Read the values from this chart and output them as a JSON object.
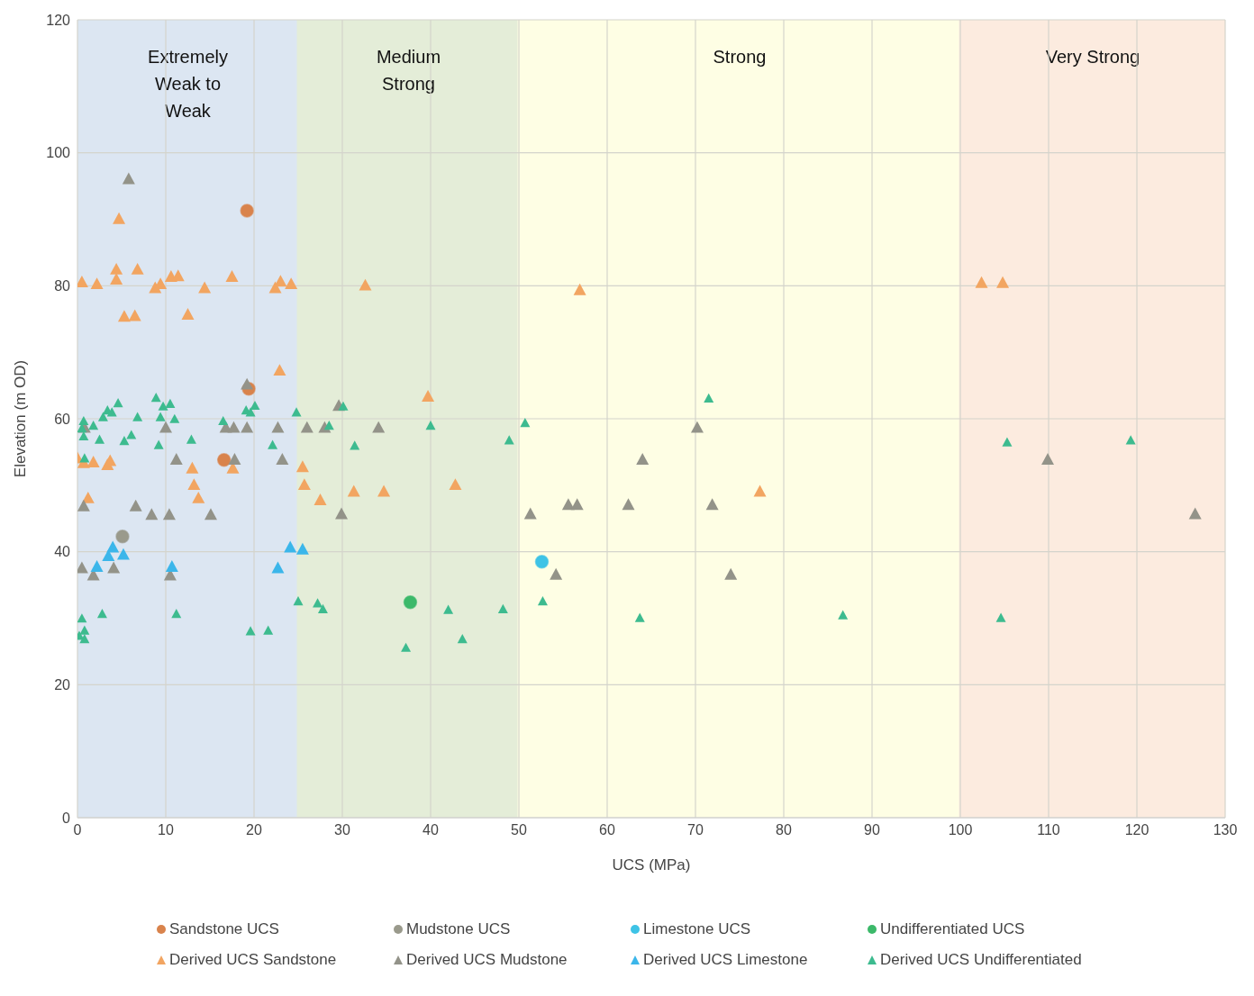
{
  "chart_data": {
    "type": "scatter",
    "xlabel": "UCS (MPa)",
    "ylabel": "Elevation (m OD)",
    "xlim": [
      0,
      130
    ],
    "xticks": [
      0,
      10,
      20,
      30,
      40,
      50,
      60,
      70,
      80,
      90,
      100,
      110,
      120,
      130
    ],
    "ylim": [
      0,
      120
    ],
    "yticks": [
      0,
      20,
      40,
      60,
      80,
      100,
      120
    ],
    "grid": true,
    "legend": "bottom",
    "bands": [
      {
        "axis": "x",
        "from": 0,
        "to": 25,
        "label": "Extremely\nWeak to\nWeak",
        "color": "#dce6f2"
      },
      {
        "axis": "x",
        "from": 25,
        "to": 50,
        "label": "Medium\nStrong",
        "color": "#e4edd8"
      },
      {
        "axis": "x",
        "from": 50,
        "to": 100,
        "label": "Strong",
        "color": "#fefee4"
      },
      {
        "axis": "x",
        "from": 100,
        "to": 130,
        "label": "Very Strong",
        "color": "#fcebdf"
      }
    ],
    "series": [
      {
        "name": "Sandstone UCS",
        "color": "#d9834c",
        "marker": "circle",
        "x": [
          19.2,
          19.4,
          16.6
        ],
        "values": [
          91.3,
          64.5,
          53.8
        ]
      },
      {
        "name": "Mudstone UCS",
        "color": "#9a9a8c",
        "marker": "circle",
        "x": [
          5.1
        ],
        "values": [
          42.3
        ]
      },
      {
        "name": "Limestone UCS",
        "color": "#3ec3e6",
        "marker": "circle",
        "x": [
          52.6
        ],
        "values": [
          38.5
        ]
      },
      {
        "name": "Undifferentiated UCS",
        "color": "#3cb96a",
        "marker": "circle",
        "x": [
          37.7
        ],
        "values": [
          32.4
        ]
      },
      {
        "name": "Derived UCS Sandstone",
        "color": "#f2a561",
        "marker": "triangle",
        "x": [
          0,
          0.5,
          0.7,
          1.2,
          1.8,
          2.2,
          3.4,
          3.7,
          4.4,
          4.4,
          4.7,
          5.3,
          6.5,
          6.8,
          8.8,
          9.4,
          10.6,
          11.4,
          12.5,
          13,
          13.2,
          13.7,
          14.4,
          17.5,
          17.6,
          22.4,
          23,
          22.9,
          24.2,
          25.5,
          25.7,
          27.5,
          31.3,
          32.6,
          34.7,
          39.7,
          42.8,
          56.9,
          77.3,
          102.4,
          104.8
        ],
        "values": [
          54,
          80.5,
          53.3,
          48,
          53.4,
          80.2,
          53,
          53.6,
          82.4,
          80.9,
          90,
          75.3,
          75.4,
          82.4,
          79.6,
          80.2,
          81.3,
          81.4,
          75.6,
          52.5,
          50,
          48,
          79.6,
          81.3,
          52.5,
          79.6,
          80.6,
          67.2,
          80.2,
          52.7,
          50,
          47.7,
          49,
          80,
          49,
          63.3,
          50,
          79.3,
          49,
          80.4,
          80.4
        ]
      },
      {
        "name": "Derived UCS Mudstone",
        "color": "#939389",
        "marker": "triangle",
        "x": [
          5.8,
          0.5,
          0.7,
          0.8,
          1.8,
          4.1,
          6.6,
          8.4,
          10,
          10.4,
          10.5,
          11.2,
          15.1,
          16.8,
          17.7,
          17.8,
          19.2,
          19.2,
          22.7,
          23.2,
          26,
          28,
          29.6,
          29.9,
          34.1,
          51.3,
          54.2,
          55.6,
          56.6,
          62.4,
          64,
          70.2,
          71.9,
          74,
          109.9,
          126.6
        ],
        "values": [
          96,
          37.5,
          46.8,
          58.6,
          36.4,
          37.5,
          46.8,
          45.5,
          58.6,
          45.5,
          36.4,
          53.8,
          45.5,
          58.6,
          58.6,
          53.8,
          58.6,
          65.1,
          58.6,
          53.8,
          58.6,
          58.6,
          61.9,
          45.6,
          58.6,
          45.6,
          36.5,
          47,
          47,
          47,
          53.8,
          58.6,
          47,
          36.5,
          53.8,
          45.6
        ]
      },
      {
        "name": "Derived UCS Limestone",
        "color": "#3bb6ea",
        "marker": "triangle",
        "x": [
          2.2,
          3.5,
          4,
          5.2,
          10.7,
          22.7,
          24.1,
          25.5
        ],
        "values": [
          37.7,
          39.3,
          40.6,
          39.5,
          37.7,
          37.5,
          40.6,
          40.3
        ]
      },
      {
        "name": "Derived UCS Undifferentiated",
        "color": "#3dbb8f",
        "marker": "triangle",
        "x": [
          0.7,
          0.5,
          0.7,
          1.8,
          2.5,
          2.9,
          3.4,
          3.9,
          4.6,
          5.3,
          6.1,
          6.8,
          8.9,
          9.7,
          10.5,
          9.4,
          11,
          9.2,
          12.9,
          16.5,
          19.1,
          20.1,
          19.6,
          22.1,
          24.8,
          0.8,
          0.5,
          2.8,
          0.8,
          0.2,
          0.8,
          11.2,
          19.6,
          21.6,
          25,
          30.1,
          28.5,
          31.4,
          40,
          48.9,
          50.7,
          27.2,
          27.8,
          37.2,
          42,
          43.6,
          48.2,
          52.7,
          71.5,
          63.7,
          86.7,
          105.3,
          119.3,
          104.6
        ],
        "values": [
          59.6,
          58.5,
          57.3,
          58.9,
          56.8,
          60.2,
          61.2,
          60.9,
          62.3,
          56.6,
          57.5,
          60.2,
          63.1,
          61.8,
          62.2,
          60.2,
          59.9,
          56,
          56.8,
          59.6,
          61.2,
          61.9,
          60.9,
          56,
          60.9,
          54,
          29.9,
          30.6,
          28.1,
          27.3,
          26.8,
          30.6,
          28,
          28.1,
          32.5,
          61.8,
          58.9,
          55.9,
          58.9,
          56.7,
          59.3,
          32.2,
          31.3,
          25.5,
          31.2,
          26.8,
          31.3,
          32.5,
          63,
          30,
          30.4,
          56.4,
          56.7,
          30
        ]
      }
    ]
  }
}
